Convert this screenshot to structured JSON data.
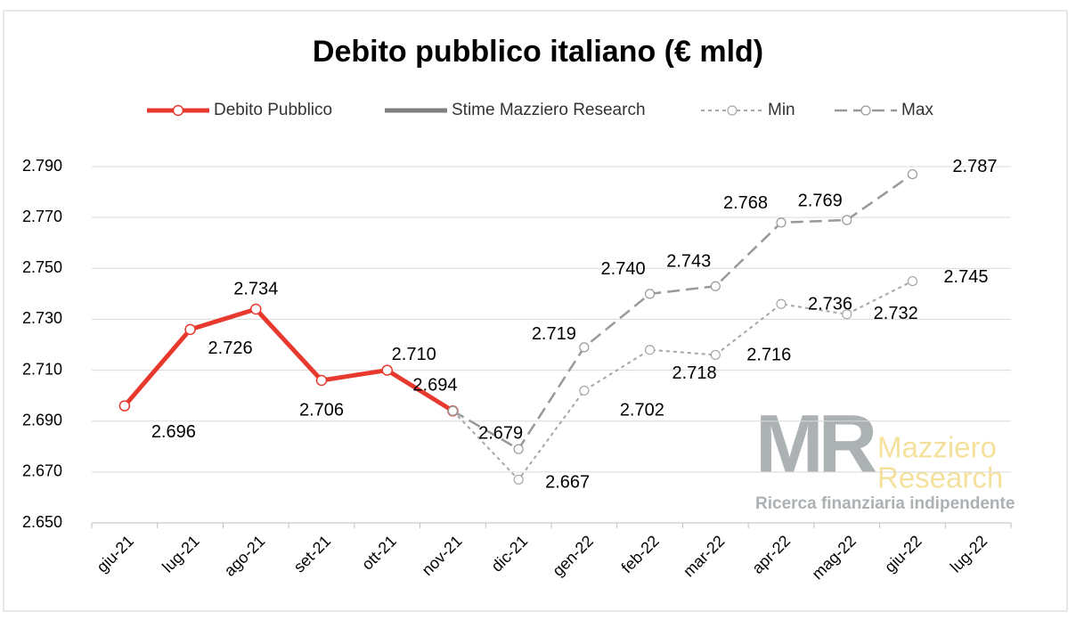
{
  "chart_data": {
    "type": "line",
    "title": "Debito pubblico italiano (€ mld)",
    "categories": [
      "giu-21",
      "lug-21",
      "ago-21",
      "set-21",
      "ott-21",
      "nov-21",
      "dic-21",
      "gen-22",
      "feb-22",
      "mar-22",
      "apr-22",
      "mag-22",
      "giu-22",
      "lug-22"
    ],
    "series": [
      {
        "name": "Debito Pubblico",
        "color": "#e8392f",
        "values": [
          2696,
          2726,
          2734,
          2706,
          2710,
          2694,
          null,
          null,
          null,
          null,
          null,
          null,
          null,
          null
        ],
        "value_labels": [
          "2.696",
          "2.726",
          "2.734",
          "2.706",
          "2.710",
          "2.694",
          null,
          null,
          null,
          null,
          null,
          null,
          null,
          null
        ]
      },
      {
        "name": "Stime Mazziero Research",
        "color": "#7f7f7f",
        "values": [
          null,
          null,
          null,
          null,
          null,
          null,
          null,
          null,
          null,
          null,
          null,
          null,
          null,
          null
        ]
      },
      {
        "name": "Min",
        "color": "#a6a6a6",
        "values": [
          null,
          null,
          null,
          null,
          null,
          2694,
          2667,
          2702,
          2718,
          2716,
          2736,
          2732,
          2745,
          null
        ],
        "value_labels": [
          null,
          null,
          null,
          null,
          null,
          null,
          "2.667",
          "2.702",
          "2.718",
          "2.716",
          "2.736",
          "2.732",
          "2.745",
          null
        ]
      },
      {
        "name": "Max",
        "color": "#999999",
        "values": [
          null,
          null,
          null,
          null,
          null,
          2694,
          2679,
          2719,
          2740,
          2743,
          2768,
          2769,
          2787,
          null
        ],
        "value_labels": [
          null,
          null,
          null,
          null,
          null,
          null,
          "2.679",
          "2.719",
          "2.740",
          "2.743",
          "2.768",
          "2.769",
          "2.787",
          null
        ]
      }
    ],
    "ylim": [
      2650,
      2790
    ],
    "yticks": [
      {
        "value": 2650,
        "label": "2.650"
      },
      {
        "value": 2670,
        "label": "2.670"
      },
      {
        "value": 2690,
        "label": "2.690"
      },
      {
        "value": 2710,
        "label": "2.710"
      },
      {
        "value": 2730,
        "label": "2.730"
      },
      {
        "value": 2750,
        "label": "2.750"
      },
      {
        "value": 2770,
        "label": "2.770"
      },
      {
        "value": 2790,
        "label": "2.790"
      }
    ],
    "grid": true,
    "legend": "top",
    "watermark": {
      "logo": "MR",
      "name_1": "Mazziero",
      "name_2": "Research",
      "tagline": "Ricerca finanziaria indipendente"
    }
  }
}
